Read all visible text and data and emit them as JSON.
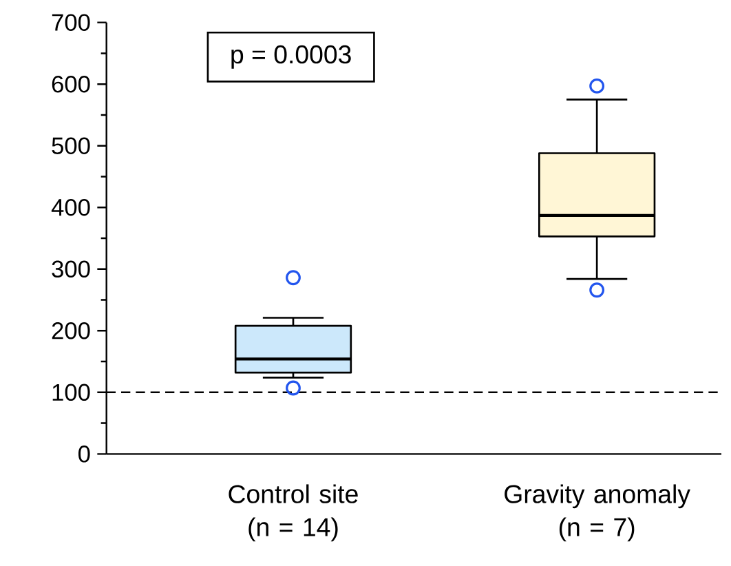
{
  "chart_data": {
    "type": "box",
    "categories": [
      "Control site (n = 14)",
      "Gravity anomaly (n = 7)"
    ],
    "boxes": [
      {
        "low": 124,
        "q1": 132,
        "median": 154,
        "q3": 208,
        "high": 221,
        "outliers": [
          286,
          107
        ]
      },
      {
        "low": 284,
        "q1": 353,
        "median": 387,
        "q3": 488,
        "high": 575,
        "outliers": [
          597,
          266
        ]
      }
    ],
    "colors": [
      "#cce8fb",
      "#fff6d6"
    ],
    "marker": "circle",
    "ylim": [
      0,
      700
    ],
    "yticks": [
      0,
      100,
      200,
      300,
      400,
      500,
      600,
      700
    ],
    "ref_lines": [
      {
        "axis": "y",
        "value": 100,
        "line_style": "dashed",
        "color": "#000000"
      }
    ],
    "annotations": [
      "p = 0.0003"
    ],
    "grid": false
  }
}
